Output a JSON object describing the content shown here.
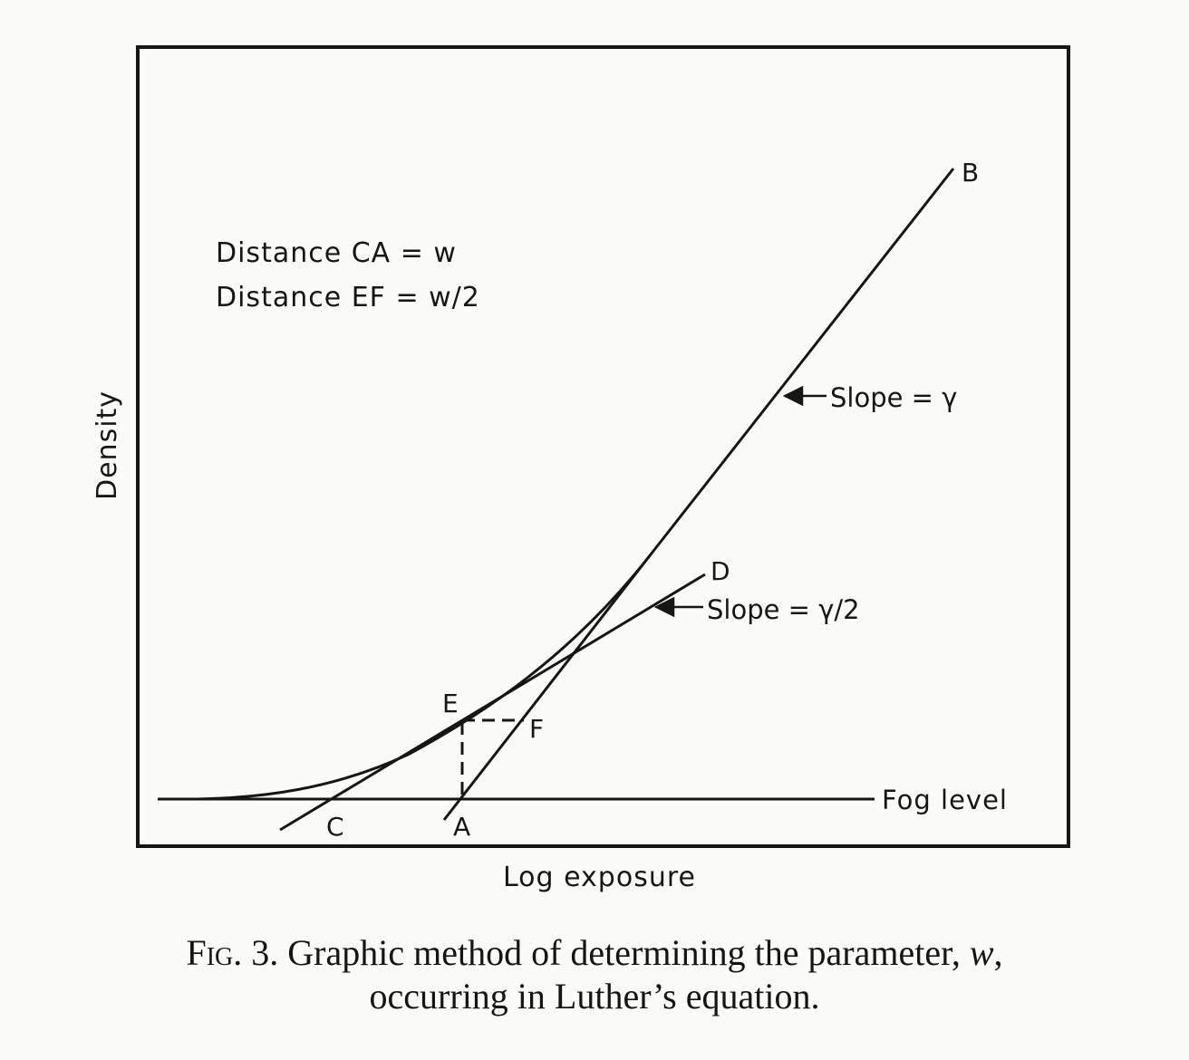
{
  "diagram": {
    "note_line1": "Distance CA = w",
    "note_line2": "Distance EF = w/2",
    "y_axis_label": "Density",
    "x_axis_label": "Log exposure",
    "slope_gamma_label": "Slope = γ",
    "slope_half_gamma_label": "Slope = γ/2",
    "fog_level_label": "Fog level",
    "points": {
      "A": "A",
      "B": "B",
      "C": "C",
      "D": "D",
      "E": "E",
      "F": "F"
    }
  },
  "caption": {
    "fig_label": "Fig. 3.",
    "line1_text": " Graphic method of determining the parameter, ",
    "line1_var": "w",
    "line1_end": ",",
    "line2": "occurring in Luther’s equation."
  }
}
